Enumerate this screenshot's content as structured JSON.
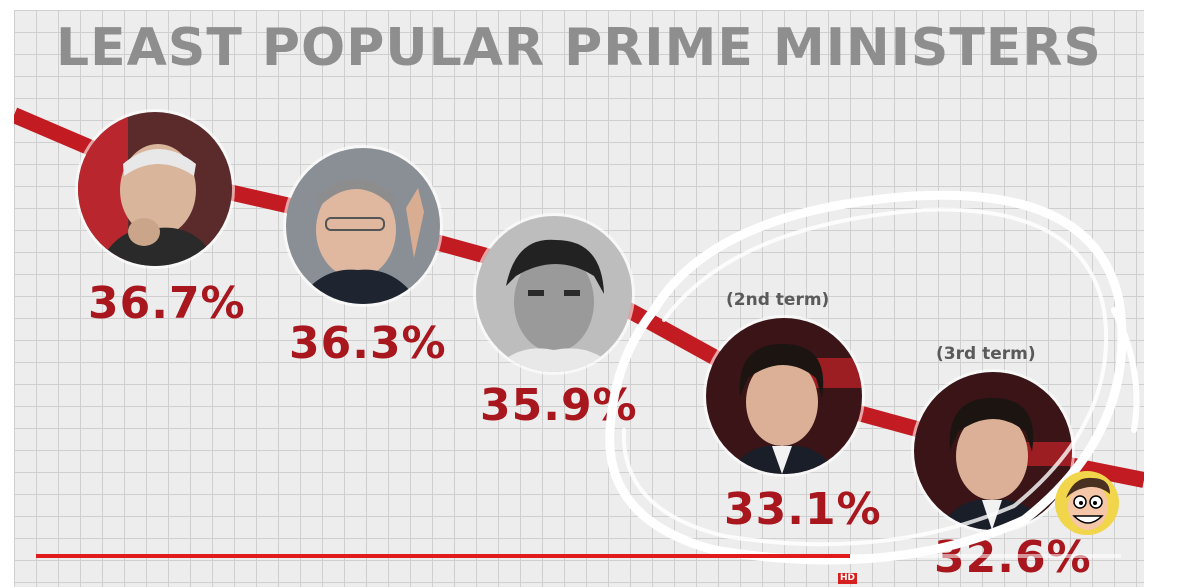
{
  "video": {
    "title": "LEAST POPULAR PRIME MINISTERS",
    "progress_percent": 75,
    "hd_badge": "HD"
  },
  "colors": {
    "trend_line": "#c21c22",
    "percent_text": "#a8161e",
    "title_text": "#8e8e8e",
    "progress": "#e11b1b"
  },
  "ministers": [
    {
      "percent": "36.7%",
      "term": ""
    },
    {
      "percent": "36.3%",
      "term": ""
    },
    {
      "percent": "35.9%",
      "term": ""
    },
    {
      "percent": "33.1%",
      "term": "(2nd term)"
    },
    {
      "percent": "32.6%",
      "term": "(3rd term)"
    }
  ]
}
